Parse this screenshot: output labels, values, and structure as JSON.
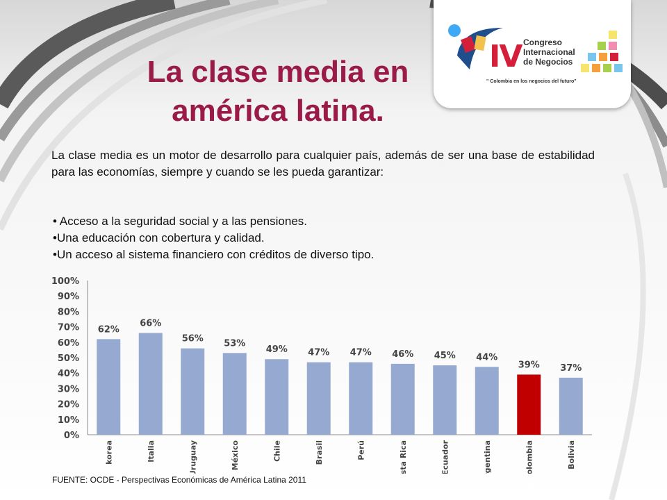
{
  "slide": {
    "title_line1": "La clase media en",
    "title_line2": "américa latina.",
    "intro": "La clase media es un motor de desarrollo para cualquier país, además de ser una base de estabilidad para las economías, siempre y cuando se les pueda garantizar:",
    "bullets": [
      "• Acceso a la seguridad social y a las pensiones.",
      "•Una educación con cobertura y calidad.",
      "•Un acceso al sistema financiero con créditos de diverso tipo."
    ],
    "source": "FUENTE:  OCDE - Perspectivas Económicas de América Latina 2011"
  },
  "logo": {
    "numeral": "IV",
    "line1": "Congreso",
    "line2": "Internacional",
    "line3": "de Negocios",
    "slogan": "\" Colombia en los negocios del futuro\""
  },
  "colors": {
    "title": "#9b1b48",
    "bar": "#95a9d1",
    "highlight": "#c00000",
    "logo_red": "#d31f3a",
    "logo_blue": "#1f4e8c"
  },
  "chart_data": {
    "type": "bar",
    "categories": [
      "korea",
      "Italia",
      "Uruguay",
      "México",
      "Chile",
      "Brasil",
      "Perú",
      "Costa Rica",
      "Ecuador",
      "Argentina",
      "Colombia",
      "Bolivia"
    ],
    "values": [
      62,
      66,
      56,
      53,
      49,
      47,
      47,
      46,
      45,
      44,
      39,
      37
    ],
    "data_labels": [
      "62%",
      "66%",
      "56%",
      "53%",
      "49%",
      "47%",
      "47%",
      "46%",
      "45%",
      "44%",
      "39%",
      "37%"
    ],
    "highlight_category": "Colombia",
    "yticks": [
      "0%",
      "10%",
      "20%",
      "30%",
      "40%",
      "50%",
      "60%",
      "70%",
      "80%",
      "90%",
      "100%"
    ],
    "ylim": [
      0,
      100
    ],
    "grid": false,
    "legend": "none"
  }
}
